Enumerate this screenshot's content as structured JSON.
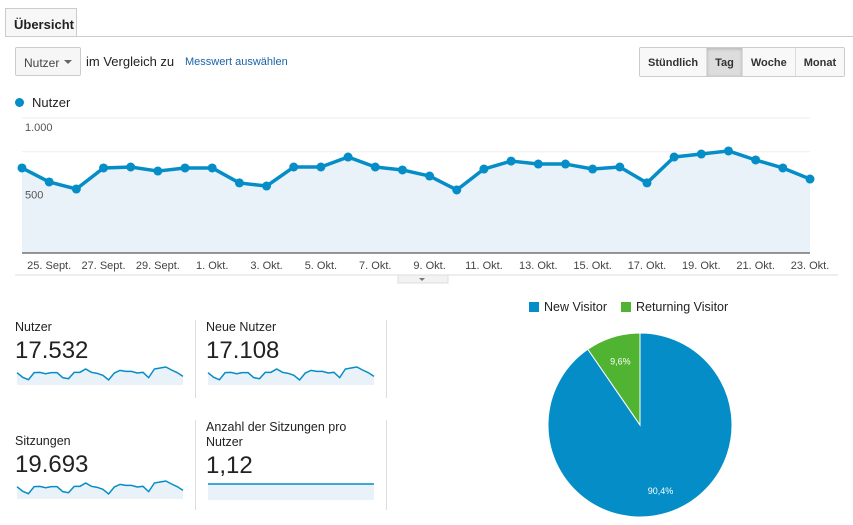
{
  "tab": "Übersicht",
  "metric_select": "Nutzer",
  "compare_label": "im Vergleich zu",
  "compare_link": "Messwert auswählen",
  "granularity": {
    "options": [
      "Stündlich",
      "Tag",
      "Woche",
      "Monat"
    ],
    "active": "Tag"
  },
  "chart_data": {
    "type": "area",
    "legend": "Nutzer",
    "color": "#058dc7",
    "ylim": [
      0,
      1000
    ],
    "yticks": [
      "1.000",
      "500"
    ],
    "xtick_labels": [
      "25. Sept.",
      "27. Sept.",
      "29. Sept.",
      "1. Okt.",
      "3. Okt.",
      "5. Okt.",
      "7. Okt.",
      "9. Okt.",
      "11. Okt.",
      "13. Okt.",
      "15. Okt.",
      "17. Okt.",
      "19. Okt.",
      "21. Okt.",
      "23. Okt."
    ],
    "x": [
      "24. Sept.",
      "25. Sept.",
      "26. Sept.",
      "27. Sept.",
      "28. Sept.",
      "29. Sept.",
      "30. Sept.",
      "1. Okt.",
      "2. Okt.",
      "3. Okt.",
      "4. Okt.",
      "5. Okt.",
      "6. Okt.",
      "7. Okt.",
      "8. Okt.",
      "9. Okt.",
      "10. Okt.",
      "11. Okt.",
      "12. Okt.",
      "13. Okt.",
      "14. Okt.",
      "15. Okt.",
      "16. Okt.",
      "17. Okt.",
      "18. Okt.",
      "19. Okt.",
      "20. Okt.",
      "21. Okt.",
      "22. Okt.",
      "23. Okt."
    ],
    "values": [
      630,
      526,
      474,
      630,
      637,
      607,
      630,
      630,
      519,
      496,
      637,
      637,
      711,
      637,
      615,
      570,
      467,
      622,
      681,
      659,
      659,
      622,
      637,
      519,
      711,
      733,
      756,
      689,
      630,
      548
    ],
    "grid": true
  },
  "metrics": [
    {
      "label": "Nutzer",
      "value": "17.532"
    },
    {
      "label": "Neue Nutzer",
      "value": "17.108"
    },
    {
      "label": "Sitzungen",
      "value": "19.693"
    },
    {
      "label": "Anzahl der Sitzungen pro Nutzer",
      "value": "1,12"
    }
  ],
  "pie": {
    "type": "pie",
    "slices": [
      {
        "name": "New Visitor",
        "value": 90.4,
        "label": "90,4%",
        "color": "#058dc7"
      },
      {
        "name": "Returning Visitor",
        "value": 9.6,
        "label": "9,6%",
        "color": "#50b432"
      }
    ]
  }
}
